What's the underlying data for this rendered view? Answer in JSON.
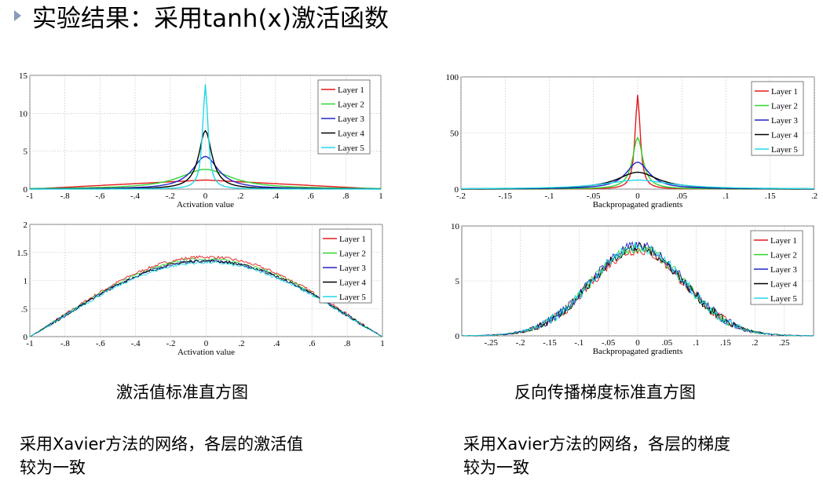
{
  "title": "实验结果：采用tanh(x)激活函数",
  "captions": {
    "left": "激活值标准直方图",
    "right": "反向传播梯度标准直方图"
  },
  "notes": {
    "left_line1": "采用Xavier方法的网络，各层的激活值",
    "left_line2": "较为一致",
    "right_line1": "采用Xavier方法的网络，各层的梯度",
    "right_line2": "较为一致"
  },
  "colors": {
    "layer1": "#e31a1c",
    "layer2": "#2ed52e",
    "layer3": "#2424c8",
    "layer4": "#000000",
    "layer5": "#22d8e6",
    "bullet": "#8a9ab8"
  },
  "chart_data": [
    {
      "id": "activation-standard",
      "type": "line",
      "xlabel": "Activation value",
      "xlim": [
        -1,
        1
      ],
      "ylim": [
        0,
        15
      ],
      "xticks": [
        -1,
        -0.8,
        -0.6,
        -0.4,
        -0.2,
        0,
        0.2,
        0.4,
        0.6,
        0.8,
        1
      ],
      "yticks": [
        0,
        5,
        10,
        15
      ],
      "grid": true,
      "legend": "top-right",
      "series": [
        {
          "name": "Layer 1",
          "shape": "triangle",
          "peak": 1.2
        },
        {
          "name": "Layer 2",
          "shape": "lorentz",
          "peak": 2.6,
          "width": 0.18
        },
        {
          "name": "Layer 3",
          "shape": "lorentz",
          "peak": 4.3,
          "width": 0.09
        },
        {
          "name": "Layer 4",
          "shape": "lorentz",
          "peak": 7.7,
          "width": 0.045
        },
        {
          "name": "Layer 5",
          "shape": "lorentz",
          "peak": 13.8,
          "width": 0.018
        }
      ]
    },
    {
      "id": "gradient-standard",
      "type": "line",
      "xlabel": "Backpropagated gradients",
      "xlim": [
        -0.2,
        0.2
      ],
      "ylim": [
        0,
        100
      ],
      "xticks": [
        -0.2,
        -0.15,
        -0.1,
        -0.05,
        0,
        0.05,
        0.1,
        0.15,
        0.2
      ],
      "yticks": [
        0,
        50,
        100
      ],
      "grid": true,
      "legend": "top-right",
      "series": [
        {
          "name": "Layer 1",
          "shape": "lorentz",
          "peak": 84,
          "width": 0.0035
        },
        {
          "name": "Layer 2",
          "shape": "lorentz",
          "peak": 46,
          "width": 0.007
        },
        {
          "name": "Layer 3",
          "shape": "lorentz",
          "peak": 24,
          "width": 0.016
        },
        {
          "name": "Layer 4",
          "shape": "lorentz",
          "peak": 15,
          "width": 0.028
        },
        {
          "name": "Layer 5",
          "shape": "lorentz",
          "peak": 8,
          "width": 0.045
        }
      ]
    },
    {
      "id": "activation-xavier",
      "type": "line",
      "xlabel": "Activation value",
      "xlim": [
        -1,
        1
      ],
      "ylim": [
        0,
        2
      ],
      "xticks": [
        -1,
        -0.8,
        -0.6,
        -0.4,
        -0.2,
        0,
        0.2,
        0.4,
        0.6,
        0.8,
        1
      ],
      "yticks": [
        0,
        0.5,
        1,
        1.5,
        2
      ],
      "grid": true,
      "legend": "top-right",
      "series": [
        {
          "name": "Layer 1",
          "shape": "bell",
          "peak": 1.42
        },
        {
          "name": "Layer 2",
          "shape": "bell",
          "peak": 1.38
        },
        {
          "name": "Layer 3",
          "shape": "bell",
          "peak": 1.35
        },
        {
          "name": "Layer 4",
          "shape": "bell",
          "peak": 1.35
        },
        {
          "name": "Layer 5",
          "shape": "bell",
          "peak": 1.32
        }
      ]
    },
    {
      "id": "gradient-xavier",
      "type": "line",
      "xlabel": "Backpropagated gradients",
      "xlim": [
        -0.3,
        0.3
      ],
      "ylim": [
        0,
        10
      ],
      "xticks": [
        -0.25,
        -0.2,
        -0.15,
        -0.1,
        -0.05,
        0,
        0.05,
        0.1,
        0.15,
        0.2,
        0.25
      ],
      "yticks": [
        0,
        5,
        10
      ],
      "grid": true,
      "legend": "top-right",
      "series": [
        {
          "name": "Layer 1",
          "shape": "gauss",
          "peak": 7.8,
          "width": 0.08
        },
        {
          "name": "Layer 2",
          "shape": "gauss",
          "peak": 8.0,
          "width": 0.08
        },
        {
          "name": "Layer 3",
          "shape": "gauss",
          "peak": 8.2,
          "width": 0.08
        },
        {
          "name": "Layer 4",
          "shape": "gauss",
          "peak": 8.0,
          "width": 0.08
        },
        {
          "name": "Layer 5",
          "shape": "gauss",
          "peak": 8.1,
          "width": 0.08
        }
      ]
    }
  ]
}
